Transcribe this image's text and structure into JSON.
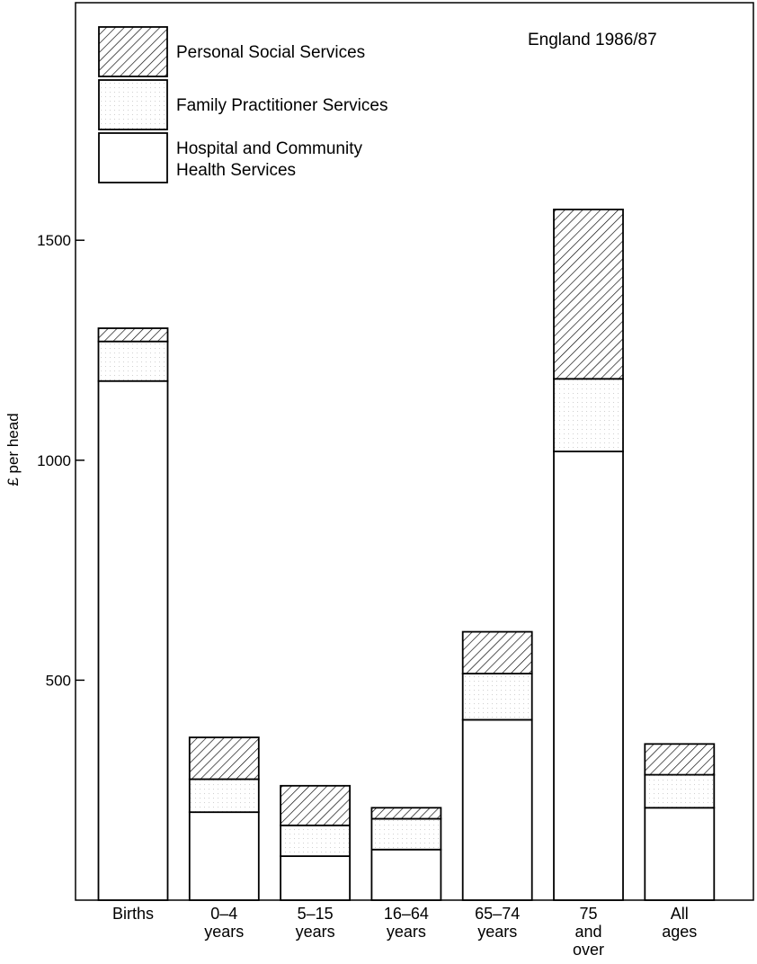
{
  "chart_data": {
    "type": "bar",
    "stacked": true,
    "annotation": "England 1986/87",
    "ylabel": "£ per head",
    "xlabel": "",
    "ylim": [
      0,
      2040
    ],
    "yticks": [
      500,
      1000,
      1500
    ],
    "grid": false,
    "legend_position": "top-left",
    "categories": [
      [
        "Births"
      ],
      [
        "0–4",
        "years"
      ],
      [
        "5–15",
        "years"
      ],
      [
        "16–64",
        "years"
      ],
      [
        "65–74",
        "years"
      ],
      [
        "75",
        "and",
        "over"
      ],
      [
        "All",
        "ages"
      ]
    ],
    "series": [
      {
        "name": "Hospital and Community Health Services",
        "label_lines": [
          "Hospital and Community",
          "Health Services"
        ],
        "pattern": "plain",
        "values": [
          1180,
          200,
          100,
          115,
          410,
          1020,
          210
        ]
      },
      {
        "name": "Family Practitioner Services",
        "label_lines": [
          "Family Practitioner Services"
        ],
        "pattern": "dotted",
        "values": [
          90,
          75,
          70,
          70,
          105,
          165,
          75
        ]
      },
      {
        "name": "Personal Social Services",
        "label_lines": [
          "Personal Social Services"
        ],
        "pattern": "hatched",
        "values": [
          30,
          95,
          90,
          25,
          95,
          385,
          70
        ]
      }
    ]
  }
}
